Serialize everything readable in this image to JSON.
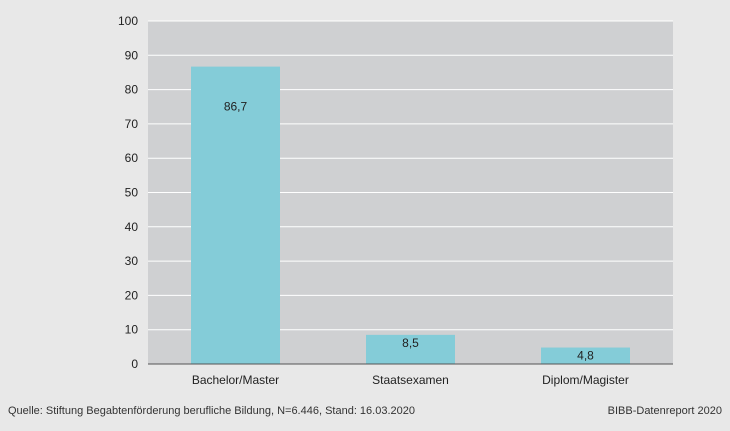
{
  "chart_data": {
    "type": "bar",
    "categories": [
      "Bachelor/Master",
      "Staatsexamen",
      "Diplom/Magister"
    ],
    "values": [
      86.7,
      8.5,
      4.8
    ],
    "value_labels": [
      "86,7",
      "8,5",
      "4,8"
    ],
    "ylim": [
      0,
      100
    ],
    "yticks": [
      0,
      10,
      20,
      30,
      40,
      50,
      60,
      70,
      80,
      90,
      100
    ],
    "title": "",
    "xlabel": "",
    "ylabel": "",
    "grid": true,
    "colors": {
      "bar": "#84ccd8",
      "plot_background": "#cfd0d2",
      "grid": "#ffffff",
      "axis": "#555555",
      "text": "#222222"
    }
  },
  "footer": {
    "source": "Quelle: Stiftung Begabtenförderung berufliche Bildung, N=6.446, Stand: 16.03.2020",
    "report": "BIBB-Datenreport 2020"
  }
}
